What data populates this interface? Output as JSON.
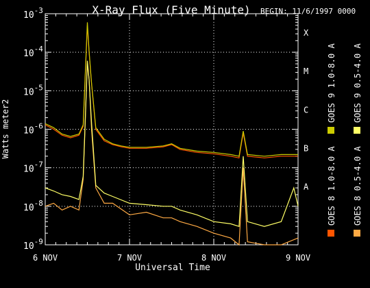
{
  "chart_data": {
    "type": "line",
    "title": "X-Ray Flux (Five Minute)",
    "begin_label": "BEGIN: 11/6/1997 0000",
    "xlabel": "Universal Time",
    "ylabel": "Watts meter2",
    "y_scale": "log",
    "ylim": [
      1e-09,
      0.001
    ],
    "xlim_days": [
      6,
      9
    ],
    "x_ticks": [
      "6 NOV",
      "7 NOV",
      "8 NOV",
      "9 NOV"
    ],
    "y_ticks": [
      {
        "base": "10",
        "exp": "-3"
      },
      {
        "base": "10",
        "exp": "-4"
      },
      {
        "base": "10",
        "exp": "-5"
      },
      {
        "base": "10",
        "exp": "-6"
      },
      {
        "base": "10",
        "exp": "-7"
      },
      {
        "base": "10",
        "exp": "-8"
      },
      {
        "base": "10",
        "exp": "-9"
      }
    ],
    "flare_classes": [
      {
        "label": "X",
        "value": 0.0001
      },
      {
        "label": "M",
        "value": 1e-05
      },
      {
        "label": "C",
        "value": 1e-06
      },
      {
        "label": "B",
        "value": 1e-07
      },
      {
        "label": "A",
        "value": 1e-08
      }
    ],
    "grid": true,
    "legend_position": "right",
    "legend_column1": [
      {
        "name": "GOES 8 1.0-8.0 A",
        "color": "#ff5500"
      },
      {
        "name": "GOES 9 1.0-8.0 A",
        "color": "#cccc00"
      }
    ],
    "legend_column2": [
      {
        "name": "GOES 8 0.5-4.0 A",
        "color": "#ffaa44"
      },
      {
        "name": "GOES 9 0.5-4.0 A",
        "color": "#ffff66"
      }
    ],
    "series": [
      {
        "name": "GOES 8 1.0-8.0 A",
        "color": "#ff5500",
        "x": [
          6.0,
          6.1,
          6.2,
          6.3,
          6.4,
          6.45,
          6.5,
          6.52,
          6.55,
          6.6,
          6.7,
          6.8,
          6.9,
          7.0,
          7.2,
          7.4,
          7.5,
          7.6,
          7.8,
          8.0,
          8.2,
          8.3,
          8.35,
          8.4,
          8.6,
          8.8,
          9.0
        ],
        "y": [
          1.3e-06,
          1e-06,
          7e-07,
          6e-07,
          7e-07,
          1.2e-06,
          0.0005,
          0.0001,
          1.5e-05,
          1e-06,
          5e-07,
          4e-07,
          3.5e-07,
          3.2e-07,
          3.2e-07,
          3.5e-07,
          4e-07,
          3e-07,
          2.5e-07,
          2.3e-07,
          2e-07,
          1.8e-07,
          8e-07,
          2e-07,
          1.8e-07,
          2e-07,
          2e-07
        ]
      },
      {
        "name": "GOES 8 0.5-4.0 A",
        "color": "#ffaa44",
        "x": [
          6.0,
          6.1,
          6.2,
          6.3,
          6.4,
          6.45,
          6.5,
          6.52,
          6.55,
          6.6,
          6.7,
          6.8,
          7.0,
          7.2,
          7.4,
          7.5,
          7.6,
          7.8,
          8.0,
          8.2,
          8.3,
          8.35,
          8.4,
          8.6,
          8.8,
          9.0
        ],
        "y": [
          1e-08,
          1.2e-08,
          8e-09,
          1e-08,
          8e-09,
          5e-08,
          5e-05,
          2e-05,
          1e-06,
          3e-08,
          1.2e-08,
          1.2e-08,
          6e-09,
          7e-09,
          5e-09,
          5e-09,
          4e-09,
          3e-09,
          2e-09,
          1.5e-09,
          1e-09,
          1e-07,
          1.2e-09,
          1e-09,
          1e-09,
          1.5e-09
        ]
      },
      {
        "name": "GOES 9 1.0-8.0 A",
        "color": "#cccc00",
        "x": [
          6.0,
          6.1,
          6.2,
          6.3,
          6.4,
          6.45,
          6.5,
          6.52,
          6.55,
          6.6,
          6.7,
          6.8,
          6.9,
          7.0,
          7.2,
          7.4,
          7.5,
          7.6,
          7.8,
          8.0,
          8.2,
          8.3,
          8.35,
          8.4,
          8.6,
          8.8,
          9.0
        ],
        "y": [
          1.4e-06,
          1.1e-06,
          7.5e-07,
          6.5e-07,
          7.5e-07,
          1.3e-06,
          0.0006,
          0.00011,
          1.6e-05,
          1.1e-06,
          5.5e-07,
          4.2e-07,
          3.7e-07,
          3.4e-07,
          3.4e-07,
          3.7e-07,
          4.2e-07,
          3.2e-07,
          2.7e-07,
          2.5e-07,
          2.2e-07,
          2e-07,
          9e-07,
          2.2e-07,
          2e-07,
          2.2e-07,
          2.2e-07
        ]
      },
      {
        "name": "GOES 9 0.5-4.0 A",
        "color": "#ffff66",
        "x": [
          6.0,
          6.1,
          6.2,
          6.3,
          6.4,
          6.45,
          6.5,
          6.52,
          6.55,
          6.6,
          6.7,
          6.8,
          7.0,
          7.2,
          7.4,
          7.5,
          7.6,
          7.8,
          8.0,
          8.2,
          8.3,
          8.35,
          8.4,
          8.6,
          8.8,
          8.95,
          9.0
        ],
        "y": [
          3e-08,
          2.5e-08,
          2e-08,
          1.8e-08,
          1.5e-08,
          6e-08,
          6e-05,
          2e-05,
          1.5e-06,
          3.5e-08,
          2.2e-08,
          1.8e-08,
          1.2e-08,
          1.1e-08,
          1e-08,
          1e-08,
          8e-09,
          6e-09,
          4e-09,
          3.5e-09,
          3e-09,
          2e-07,
          4e-09,
          3e-09,
          4e-09,
          3e-08,
          1e-08
        ]
      }
    ]
  }
}
